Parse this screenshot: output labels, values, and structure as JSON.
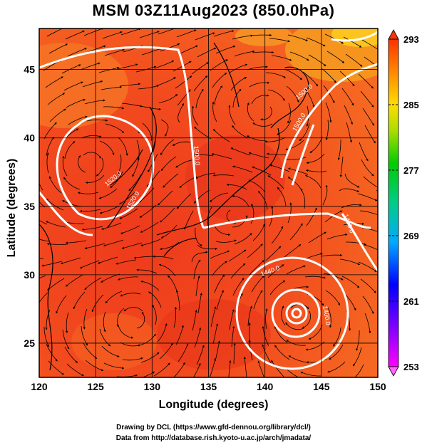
{
  "header": {
    "title": "MSM 03Z11Aug2023 (850.0hPa)"
  },
  "axes": {
    "xlabel": "Longitude (degrees)",
    "ylabel": "Latitude  (degrees)",
    "xticks": [
      "120",
      "125",
      "130",
      "135",
      "140",
      "145",
      "150"
    ],
    "yticks": [
      "25",
      "30",
      "35",
      "40",
      "45"
    ],
    "xlim": [
      120,
      150
    ],
    "ylim": [
      22.5,
      48
    ]
  },
  "colorbar": {
    "labels": [
      "293",
      "285",
      "277",
      "269",
      "261",
      "253"
    ],
    "min": 253,
    "max": 293
  },
  "contours": {
    "labels": [
      "1500.0",
      "1520.0",
      "1500.0",
      "1520.0",
      "1480.0",
      "1440.0",
      "1400.0",
      "1500.0"
    ]
  },
  "footer": {
    "line1": "Drawing by DCL (https://www.gfd-dennou.org/library/dcl/)",
    "line2": "Data from http://database.rish.kyoto-u.ac.jp/arch/jmadata/"
  }
}
